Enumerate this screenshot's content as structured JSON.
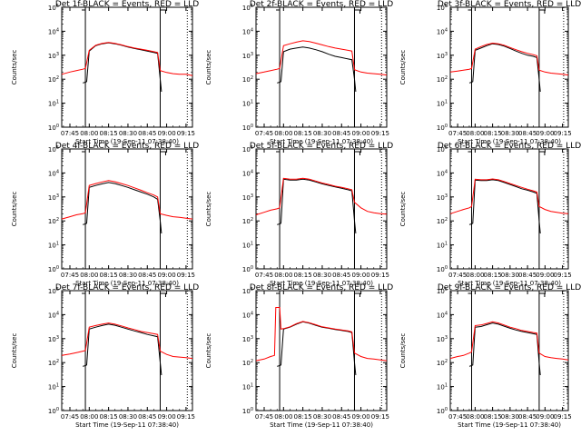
{
  "shared": {
    "ylabel": "Counts/sec",
    "xlabel": "Start Time (19-Sep-11 07:38:40)",
    "x_tick_labels": [
      "07:45",
      "08:00",
      "08:15",
      "08:30",
      "08:45",
      "09:00",
      "09:15"
    ],
    "y_tick_labels": [
      {
        "base": "10",
        "exp": "0"
      },
      {
        "base": "10",
        "exp": "1"
      },
      {
        "base": "10",
        "exp": "2"
      },
      {
        "base": "10",
        "exp": "3"
      },
      {
        "base": "10",
        "exp": "4"
      },
      {
        "base": "10",
        "exp": "5"
      }
    ],
    "colors": {
      "events": "#000000",
      "lld": "#ff0000",
      "axes": "#000000"
    }
  },
  "chart_data": [
    {
      "type": "line",
      "title": "Det 1f-BLACK = Events, RED = LLD",
      "xlim": [
        "07:38:40",
        "09:20"
      ],
      "ylim": [
        1,
        100000
      ],
      "y_scale": "log",
      "series": [
        {
          "name": "Events",
          "color": "#000000",
          "x": [
            "07:55",
            "07:57",
            "07:58",
            "08:00",
            "08:05",
            "08:10",
            "08:15",
            "08:20",
            "08:25",
            "08:30",
            "08:35",
            "08:40",
            "08:45",
            "08:50",
            "08:53",
            "08:55",
            "08:56"
          ],
          "values": [
            70,
            75,
            80,
            1500,
            2500,
            3000,
            3300,
            3000,
            2600,
            2200,
            1900,
            1700,
            1500,
            1300,
            1200,
            100,
            30
          ]
        },
        {
          "name": "LLD",
          "color": "#ff0000",
          "x": [
            "07:38:40",
            "07:45",
            "07:50",
            "07:55",
            "07:57",
            "08:00",
            "08:05",
            "08:10",
            "08:15",
            "08:20",
            "08:25",
            "08:30",
            "08:35",
            "08:40",
            "08:45",
            "08:50",
            "08:53",
            "08:55",
            "09:00",
            "09:05",
            "09:10",
            "09:15",
            "09:20"
          ],
          "values": [
            160,
            200,
            230,
            260,
            280,
            1600,
            2600,
            3100,
            3400,
            3100,
            2700,
            2300,
            2000,
            1800,
            1600,
            1400,
            1300,
            230,
            190,
            170,
            160,
            160,
            140
          ]
        }
      ]
    },
    {
      "type": "line",
      "title": "Det 2f-BLACK = Events, RED = LLD",
      "xlim": [
        "07:38:40",
        "09:20"
      ],
      "ylim": [
        1,
        100000
      ],
      "y_scale": "log",
      "series": [
        {
          "name": "Events",
          "color": "#000000",
          "x": [
            "07:55",
            "07:57",
            "07:58",
            "08:00",
            "08:05",
            "08:10",
            "08:15",
            "08:20",
            "08:25",
            "08:30",
            "08:35",
            "08:40",
            "08:45",
            "08:50",
            "08:53",
            "08:55",
            "08:56"
          ],
          "values": [
            70,
            75,
            80,
            1400,
            1800,
            2000,
            2200,
            2000,
            1700,
            1400,
            1100,
            900,
            800,
            700,
            650,
            100,
            30
          ]
        },
        {
          "name": "LLD",
          "color": "#ff0000",
          "x": [
            "07:38:40",
            "07:45",
            "07:50",
            "07:55",
            "07:57",
            "08:00",
            "08:05",
            "08:10",
            "08:15",
            "08:20",
            "08:25",
            "08:30",
            "08:35",
            "08:40",
            "08:45",
            "08:50",
            "08:53",
            "08:55",
            "09:00",
            "09:05",
            "09:10",
            "09:15",
            "09:20"
          ],
          "values": [
            170,
            200,
            230,
            260,
            280,
            2500,
            3000,
            3500,
            4000,
            3700,
            3200,
            2700,
            2300,
            2000,
            1800,
            1600,
            1500,
            250,
            200,
            180,
            170,
            160,
            150
          ]
        }
      ]
    },
    {
      "type": "line",
      "title": "Det 3f-BLACK = Events, RED = LLD",
      "xlim": [
        "07:38:40",
        "09:20"
      ],
      "ylim": [
        1,
        100000
      ],
      "y_scale": "log",
      "series": [
        {
          "name": "Events",
          "color": "#000000",
          "x": [
            "07:55",
            "07:57",
            "07:58",
            "08:00",
            "08:05",
            "08:10",
            "08:15",
            "08:20",
            "08:25",
            "08:30",
            "08:35",
            "08:40",
            "08:45",
            "08:50",
            "08:53",
            "08:55",
            "08:56"
          ],
          "values": [
            70,
            75,
            80,
            1600,
            2000,
            2500,
            3000,
            2800,
            2400,
            1900,
            1500,
            1200,
            1000,
            900,
            800,
            100,
            30
          ]
        },
        {
          "name": "LLD",
          "color": "#ff0000",
          "x": [
            "07:38:40",
            "07:45",
            "07:50",
            "07:55",
            "07:57",
            "08:00",
            "08:05",
            "08:10",
            "08:15",
            "08:20",
            "08:25",
            "08:30",
            "08:35",
            "08:40",
            "08:45",
            "08:50",
            "08:53",
            "08:55",
            "09:00",
            "09:05",
            "09:10",
            "09:15",
            "09:20"
          ],
          "values": [
            200,
            220,
            240,
            260,
            280,
            1800,
            2300,
            2800,
            3200,
            3000,
            2600,
            2100,
            1700,
            1400,
            1200,
            1050,
            950,
            240,
            200,
            180,
            170,
            160,
            150
          ]
        }
      ]
    },
    {
      "type": "line",
      "title": "Det 4f-BLACK = Events, RED = LLD",
      "xlim": [
        "07:38:40",
        "09:20"
      ],
      "ylim": [
        1,
        100000
      ],
      "y_scale": "log",
      "series": [
        {
          "name": "Events",
          "color": "#000000",
          "x": [
            "07:55",
            "07:57",
            "07:58",
            "08:00",
            "08:05",
            "08:10",
            "08:15",
            "08:20",
            "08:25",
            "08:30",
            "08:35",
            "08:40",
            "08:45",
            "08:50",
            "08:53",
            "08:55",
            "08:56"
          ],
          "values": [
            70,
            75,
            80,
            2500,
            3000,
            3500,
            4000,
            3600,
            3000,
            2500,
            2000,
            1600,
            1300,
            1000,
            800,
            100,
            30
          ]
        },
        {
          "name": "LLD",
          "color": "#ff0000",
          "x": [
            "07:38:40",
            "07:45",
            "07:50",
            "07:55",
            "07:57",
            "08:00",
            "08:05",
            "08:10",
            "08:15",
            "08:20",
            "08:25",
            "08:30",
            "08:35",
            "08:40",
            "08:45",
            "08:50",
            "08:53",
            "08:55",
            "09:00",
            "09:05",
            "09:10",
            "09:15",
            "09:20"
          ],
          "values": [
            120,
            150,
            180,
            200,
            220,
            3000,
            3600,
            4200,
            4800,
            4300,
            3600,
            3000,
            2400,
            1900,
            1500,
            1200,
            1000,
            200,
            170,
            150,
            140,
            130,
            120
          ]
        }
      ]
    },
    {
      "type": "line",
      "title": "Det 5f-BLACK = Events, RED = LLD",
      "xlim": [
        "07:38:40",
        "09:20"
      ],
      "ylim": [
        1,
        100000
      ],
      "y_scale": "log",
      "series": [
        {
          "name": "Events",
          "color": "#000000",
          "x": [
            "07:55",
            "07:57",
            "07:58",
            "08:00",
            "08:05",
            "08:10",
            "08:15",
            "08:20",
            "08:25",
            "08:30",
            "08:35",
            "08:40",
            "08:45",
            "08:50",
            "08:53",
            "08:55",
            "08:56"
          ],
          "values": [
            70,
            75,
            80,
            5500,
            5000,
            5000,
            5500,
            5000,
            4200,
            3500,
            3000,
            2600,
            2300,
            2000,
            1800,
            100,
            30
          ]
        },
        {
          "name": "LLD",
          "color": "#ff0000",
          "x": [
            "07:38:40",
            "07:45",
            "07:50",
            "07:55",
            "07:57",
            "08:00",
            "08:05",
            "08:10",
            "08:15",
            "08:20",
            "08:25",
            "08:30",
            "08:35",
            "08:40",
            "08:45",
            "08:50",
            "08:53",
            "08:55",
            "09:00",
            "09:05",
            "09:10",
            "09:15",
            "09:20"
          ],
          "values": [
            180,
            230,
            280,
            320,
            350,
            6000,
            5500,
            5500,
            6000,
            5500,
            4600,
            3800,
            3300,
            2800,
            2500,
            2200,
            2000,
            600,
            350,
            250,
            220,
            200,
            190
          ]
        }
      ]
    },
    {
      "type": "line",
      "title": "Det 6f-BLACK = Events, RED = LLD",
      "xlim": [
        "07:38:40",
        "09:20"
      ],
      "ylim": [
        1,
        100000
      ],
      "y_scale": "log",
      "series": [
        {
          "name": "Events",
          "color": "#000000",
          "x": [
            "07:55",
            "07:57",
            "07:58",
            "08:00",
            "08:05",
            "08:10",
            "08:15",
            "08:20",
            "08:25",
            "08:30",
            "08:35",
            "08:40",
            "08:45",
            "08:50",
            "08:53",
            "08:55",
            "08:56"
          ],
          "values": [
            70,
            75,
            80,
            5000,
            4800,
            4800,
            5200,
            4800,
            4000,
            3300,
            2700,
            2200,
            1900,
            1600,
            1400,
            100,
            30
          ]
        },
        {
          "name": "LLD",
          "color": "#ff0000",
          "x": [
            "07:38:40",
            "07:45",
            "07:50",
            "07:55",
            "07:57",
            "08:00",
            "08:05",
            "08:10",
            "08:15",
            "08:20",
            "08:25",
            "08:30",
            "08:35",
            "08:40",
            "08:45",
            "08:50",
            "08:53",
            "08:55",
            "09:00",
            "09:05",
            "09:10",
            "09:15",
            "09:20"
          ],
          "values": [
            200,
            250,
            300,
            350,
            400,
            5500,
            5200,
            5200,
            5600,
            5200,
            4400,
            3600,
            3000,
            2500,
            2100,
            1800,
            1600,
            400,
            300,
            250,
            230,
            210,
            200
          ]
        }
      ]
    },
    {
      "type": "line",
      "title": "Det 7f-BLACK = Events, RED = LLD",
      "xlim": [
        "07:38:40",
        "09:20"
      ],
      "ylim": [
        1,
        100000
      ],
      "y_scale": "log",
      "series": [
        {
          "name": "Events",
          "color": "#000000",
          "x": [
            "07:55",
            "07:57",
            "07:58",
            "08:00",
            "08:05",
            "08:10",
            "08:15",
            "08:20",
            "08:25",
            "08:30",
            "08:35",
            "08:40",
            "08:45",
            "08:50",
            "08:53",
            "08:55",
            "08:56"
          ],
          "values": [
            70,
            75,
            80,
            2500,
            3000,
            3500,
            4000,
            3600,
            3000,
            2500,
            2100,
            1800,
            1500,
            1300,
            1200,
            100,
            30
          ]
        },
        {
          "name": "LLD",
          "color": "#ff0000",
          "x": [
            "07:38:40",
            "07:45",
            "07:50",
            "07:55",
            "07:57",
            "08:00",
            "08:05",
            "08:10",
            "08:15",
            "08:20",
            "08:25",
            "08:30",
            "08:35",
            "08:40",
            "08:45",
            "08:50",
            "08:53",
            "08:55",
            "09:00",
            "09:05",
            "09:10",
            "09:15",
            "09:20"
          ],
          "values": [
            200,
            230,
            260,
            300,
            320,
            3000,
            3500,
            4000,
            4500,
            4000,
            3400,
            2800,
            2400,
            2000,
            1800,
            1600,
            1500,
            300,
            220,
            180,
            170,
            160,
            150
          ]
        }
      ]
    },
    {
      "type": "line",
      "title": "Det 8f-BLACK = Events, RED = LLD",
      "xlim": [
        "07:38:40",
        "09:20"
      ],
      "ylim": [
        1,
        100000
      ],
      "y_scale": "log",
      "series": [
        {
          "name": "Events",
          "color": "#000000",
          "x": [
            "07:55",
            "07:57",
            "07:58",
            "08:00",
            "08:05",
            "08:10",
            "08:15",
            "08:20",
            "08:25",
            "08:30",
            "08:35",
            "08:40",
            "08:45",
            "08:50",
            "08:53",
            "08:55",
            "08:56"
          ],
          "values": [
            70,
            75,
            80,
            2500,
            3000,
            4000,
            5000,
            4400,
            3600,
            3000,
            2700,
            2400,
            2200,
            2000,
            1800,
            100,
            30
          ]
        },
        {
          "name": "LLD",
          "color": "#ff0000",
          "x": [
            "07:38:40",
            "07:45",
            "07:50",
            "07:53",
            "07:54",
            "07:57",
            "07:58",
            "08:00",
            "08:05",
            "08:10",
            "08:15",
            "08:20",
            "08:25",
            "08:30",
            "08:35",
            "08:40",
            "08:45",
            "08:50",
            "08:53",
            "08:55",
            "09:00",
            "09:05",
            "09:10",
            "09:15",
            "09:20"
          ],
          "values": [
            120,
            140,
            180,
            200,
            20000,
            20000,
            2500,
            2600,
            3100,
            4200,
            5200,
            4600,
            3800,
            3100,
            2800,
            2500,
            2300,
            2100,
            1900,
            250,
            180,
            150,
            140,
            130,
            120
          ]
        }
      ]
    },
    {
      "type": "line",
      "title": "Det 9f-BLACK = Events, RED = LLD",
      "xlim": [
        "07:38:40",
        "09:20"
      ],
      "ylim": [
        1,
        100000
      ],
      "y_scale": "log",
      "series": [
        {
          "name": "Events",
          "color": "#000000",
          "x": [
            "07:55",
            "07:57",
            "07:58",
            "08:00",
            "08:05",
            "08:10",
            "08:15",
            "08:20",
            "08:25",
            "08:30",
            "08:35",
            "08:40",
            "08:45",
            "08:50",
            "08:53",
            "08:55",
            "08:56"
          ],
          "values": [
            70,
            75,
            80,
            3000,
            3200,
            3800,
            4500,
            4000,
            3300,
            2700,
            2300,
            2000,
            1800,
            1600,
            1500,
            100,
            30
          ]
        },
        {
          "name": "LLD",
          "color": "#ff0000",
          "x": [
            "07:38:40",
            "07:45",
            "07:50",
            "07:55",
            "07:57",
            "08:00",
            "08:05",
            "08:10",
            "08:15",
            "08:20",
            "08:25",
            "08:30",
            "08:35",
            "08:40",
            "08:45",
            "08:50",
            "08:53",
            "08:55",
            "09:00",
            "09:05",
            "09:10",
            "09:15",
            "09:20"
          ],
          "values": [
            150,
            180,
            200,
            250,
            280,
            3500,
            3700,
            4300,
            5000,
            4500,
            3700,
            3000,
            2600,
            2200,
            2000,
            1800,
            1700,
            250,
            180,
            160,
            150,
            140,
            130
          ]
        }
      ]
    }
  ]
}
